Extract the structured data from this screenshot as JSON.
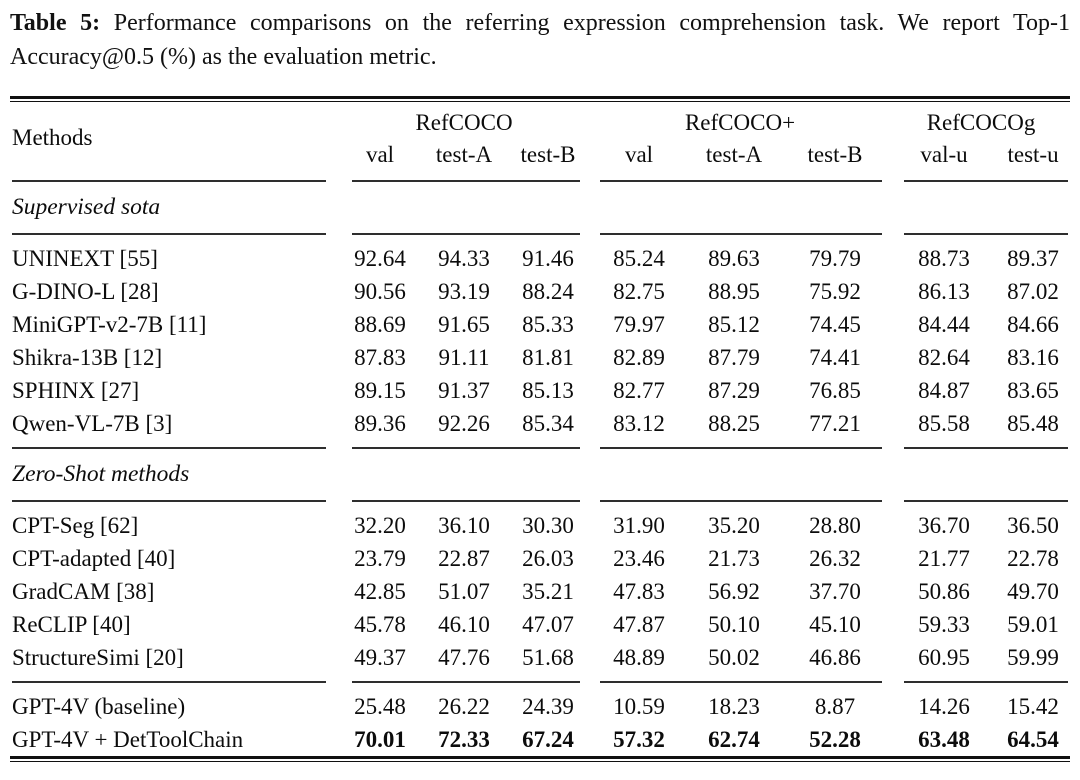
{
  "caption": {
    "label": "Table 5:",
    "text": "Performance comparisons on the referring expression comprehension task. We report Top-1 Accuracy@0.5 (%) as the evaluation metric."
  },
  "table": {
    "methods_header": "Methods",
    "groups": [
      {
        "label": "RefCOCO",
        "subcols": [
          "val",
          "test-A",
          "test-B"
        ]
      },
      {
        "label": "RefCOCO+",
        "subcols": [
          "val",
          "test-A",
          "test-B"
        ]
      },
      {
        "label": "RefCOCOg",
        "subcols": [
          "val-u",
          "test-u"
        ]
      }
    ],
    "sections": [
      {
        "title": "Supervised sota",
        "rows": [
          {
            "method": "UNINEXT [55]",
            "values": [
              "92.64",
              "94.33",
              "91.46",
              "85.24",
              "89.63",
              "79.79",
              "88.73",
              "89.37"
            ]
          },
          {
            "method": "G-DINO-L [28]",
            "values": [
              "90.56",
              "93.19",
              "88.24",
              "82.75",
              "88.95",
              "75.92",
              "86.13",
              "87.02"
            ]
          },
          {
            "method": "MiniGPT-v2-7B [11]",
            "values": [
              "88.69",
              "91.65",
              "85.33",
              "79.97",
              "85.12",
              "74.45",
              "84.44",
              "84.66"
            ]
          },
          {
            "method": "Shikra-13B [12]",
            "values": [
              "87.83",
              "91.11",
              "81.81",
              "82.89",
              "87.79",
              "74.41",
              "82.64",
              "83.16"
            ]
          },
          {
            "method": "SPHINX [27]",
            "values": [
              "89.15",
              "91.37",
              "85.13",
              "82.77",
              "87.29",
              "76.85",
              "84.87",
              "83.65"
            ]
          },
          {
            "method": "Qwen-VL-7B [3]",
            "values": [
              "89.36",
              "92.26",
              "85.34",
              "83.12",
              "88.25",
              "77.21",
              "85.58",
              "85.48"
            ]
          }
        ]
      },
      {
        "title": "Zero-Shot methods",
        "rows": [
          {
            "method": "CPT-Seg [62]",
            "values": [
              "32.20",
              "36.10",
              "30.30",
              "31.90",
              "35.20",
              "28.80",
              "36.70",
              "36.50"
            ]
          },
          {
            "method": "CPT-adapted [40]",
            "values": [
              "23.79",
              "22.87",
              "26.03",
              "23.46",
              "21.73",
              "26.32",
              "21.77",
              "22.78"
            ]
          },
          {
            "method": "GradCAM [38]",
            "values": [
              "42.85",
              "51.07",
              "35.21",
              "47.83",
              "56.92",
              "37.70",
              "50.86",
              "49.70"
            ]
          },
          {
            "method": "ReCLIP [40]",
            "values": [
              "45.78",
              "46.10",
              "47.07",
              "47.87",
              "50.10",
              "45.10",
              "59.33",
              "59.01"
            ]
          },
          {
            "method": "StructureSimi [20]",
            "values": [
              "49.37",
              "47.76",
              "51.68",
              "48.89",
              "50.02",
              "46.86",
              "60.95",
              "59.99"
            ]
          }
        ]
      },
      {
        "title": null,
        "rows": [
          {
            "method": "GPT-4V (baseline)",
            "values": [
              "25.48",
              "26.22",
              "24.39",
              "10.59",
              "18.23",
              "8.87",
              "14.26",
              "15.42"
            ]
          },
          {
            "method": "GPT-4V + DetToolChain",
            "values": [
              "70.01",
              "72.33",
              "67.24",
              "57.32",
              "62.74",
              "52.28",
              "63.48",
              "64.54"
            ],
            "bold_values": true
          }
        ]
      }
    ]
  },
  "colors": {
    "background": "#ffffff",
    "text": "#0a0a0a",
    "heavy_rule": "#101010",
    "mid_rule": "#2e2e2e"
  }
}
